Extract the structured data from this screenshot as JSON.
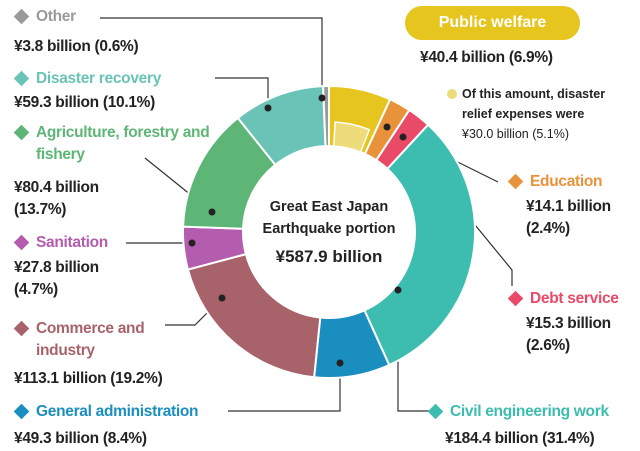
{
  "chart_data": {
    "type": "pie",
    "donut": true,
    "center_label": "Great East Japan Earthquake portion",
    "total": 587.9,
    "total_label": "¥587.9 billion",
    "categories": [
      "Public welfare",
      "Education",
      "Debt service",
      "Civil engineering work",
      "General administration",
      "Commerce and industry",
      "Sanitation",
      "Agriculture, forestry and fishery",
      "Disaster recovery",
      "Other"
    ],
    "values": [
      40.4,
      14.1,
      15.3,
      184.4,
      49.3,
      113.1,
      27.8,
      80.4,
      59.3,
      3.8
    ],
    "value_labels": [
      "¥40.4 billion (6.9%)",
      "¥14.1 billion (2.4%)",
      "¥15.3 billion (2.6%)",
      "¥184.4 billion (31.4%)",
      "¥49.3 billion (8.4%)",
      "¥113.1 billion (19.2%)",
      "¥27.8 billion (4.7%)",
      "¥80.4 billion (13.7%)",
      "¥59.3 billion (10.1%)",
      "¥3.8 billion (0.6%)"
    ],
    "colors": [
      "#e6c51e",
      "#e8923a",
      "#e84a68",
      "#3dbdb0",
      "#1b8ec0",
      "#a8636a",
      "#b45cae",
      "#5db675",
      "#6ac3b7",
      "#9a9a9a"
    ],
    "annotation": "Of this amount, disaster relief expenses were",
    "sub_item": {
      "value": 30.0,
      "label": "¥30.0 billion (5.1%)",
      "color": "#eedb7a"
    }
  }
}
